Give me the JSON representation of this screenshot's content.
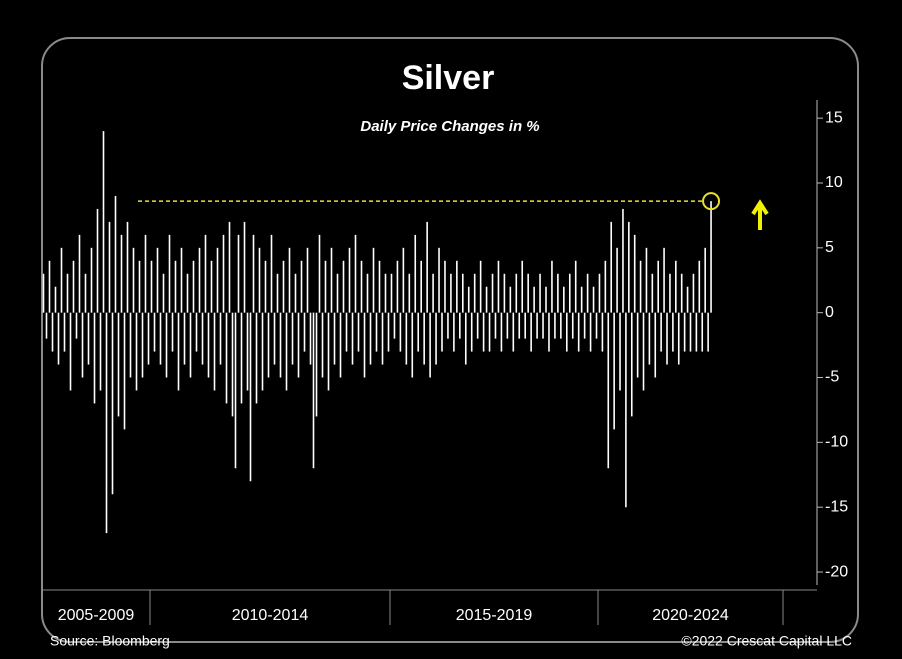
{
  "chart_data": {
    "type": "spikes",
    "title": "Silver",
    "subtitle": "Daily Price Changes in %",
    "source": "Source: Bloomberg",
    "credit": "©2022 Crescat Capital LLC",
    "color": "#ffffff",
    "highlight_color": "#e8e030",
    "ylim": [
      -21,
      16.4
    ],
    "yticks": [
      15,
      10,
      5,
      0,
      -5,
      -10,
      -15,
      -20
    ],
    "periods": [
      {
        "label": "2005-2009",
        "values": [
          3,
          -2,
          4,
          -3,
          2,
          -4,
          5,
          -3,
          3,
          -6,
          4,
          -2,
          6,
          -5,
          3,
          -4,
          5,
          -7,
          8,
          -6,
          14,
          -17,
          7,
          -14,
          9,
          -8,
          6,
          -9,
          7,
          -5,
          5,
          -6,
          4,
          -5,
          6,
          -4
        ]
      },
      {
        "label": "2010-2014",
        "values": [
          4,
          -3,
          5,
          -4,
          3,
          -5,
          6,
          -3,
          4,
          -6,
          5,
          -4,
          3,
          -5,
          4,
          -3,
          5,
          -4,
          6,
          -5,
          4,
          -6,
          5,
          -4,
          6,
          -7,
          7,
          -8,
          -12,
          6,
          -7,
          7,
          -6,
          -13,
          6,
          -7,
          5,
          -6,
          4,
          -5,
          6,
          -4,
          3,
          -5,
          4,
          -6,
          5,
          -4,
          3,
          -5,
          4,
          -3,
          5,
          -4,
          -12,
          -8,
          6,
          -5,
          4,
          -6,
          5,
          -4,
          3,
          -5,
          4,
          -3,
          5,
          -4,
          6,
          -3,
          4,
          -5,
          3,
          -4,
          5,
          -3,
          4,
          -4,
          3,
          -3
        ]
      },
      {
        "label": "2015-2019",
        "values": [
          3,
          -2,
          4,
          -3,
          5,
          -4,
          3,
          -5,
          6,
          -3,
          4,
          -4,
          7,
          -5,
          3,
          -4,
          5,
          -3,
          4,
          -2,
          3,
          -3,
          4,
          -2,
          3,
          -4,
          2,
          -3,
          3,
          -2,
          4,
          -3,
          2,
          -3,
          3,
          -2,
          4,
          -3,
          3,
          -2,
          2,
          -3,
          3,
          -2,
          4,
          -2,
          3,
          -3,
          2,
          -2,
          3,
          -2,
          2,
          -3,
          4,
          -2,
          3,
          -2,
          2,
          -3,
          3,
          -2,
          4,
          -3,
          2,
          -2,
          3,
          -3,
          2,
          -2
        ]
      },
      {
        "label": "2020-2024",
        "values": [
          3,
          -3,
          4,
          -12,
          7,
          -9,
          5,
          -6,
          8,
          -15,
          7,
          -8,
          6,
          -5,
          4,
          -6,
          5,
          -4,
          3,
          -5,
          4,
          -3,
          5,
          -4,
          3,
          -3,
          4,
          -4,
          3,
          -3,
          2,
          -3,
          3,
          -3,
          4,
          -3,
          5,
          -3,
          8.6,
          null,
          null,
          null,
          null,
          null,
          null,
          null,
          null,
          null,
          null,
          null,
          null,
          null,
          null,
          null,
          null,
          null,
          null,
          null,
          null,
          null,
          null,
          null,
          null
        ]
      }
    ]
  }
}
